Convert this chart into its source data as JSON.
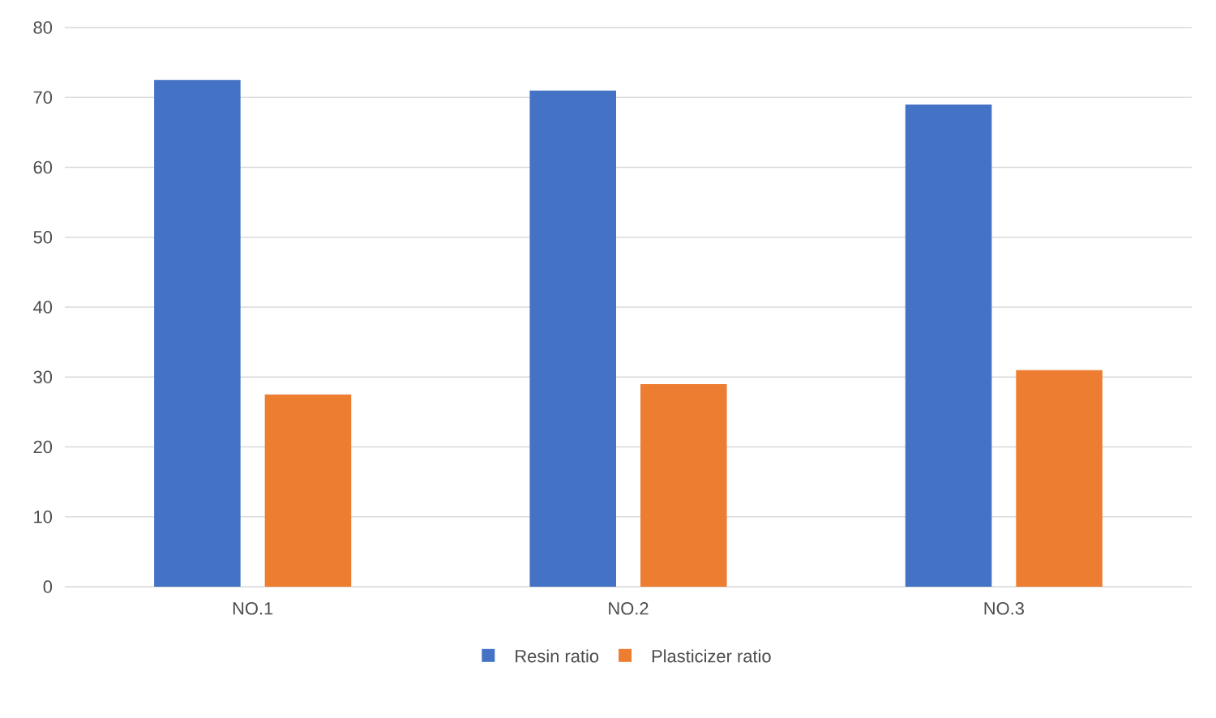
{
  "chart_data": {
    "type": "bar",
    "categories": [
      "NO.1",
      "NO.2",
      "NO.3"
    ],
    "series": [
      {
        "name": "Resin ratio",
        "color": "#4472c4",
        "values": [
          72.5,
          71,
          69
        ]
      },
      {
        "name": "Plasticizer ratio",
        "color": "#ed7d31",
        "values": [
          27.5,
          29,
          31
        ]
      }
    ],
    "ylim": [
      0,
      80
    ],
    "yticks": [
      0,
      10,
      20,
      30,
      40,
      50,
      60,
      70,
      80
    ],
    "grid": "y",
    "legend": "bottom"
  }
}
